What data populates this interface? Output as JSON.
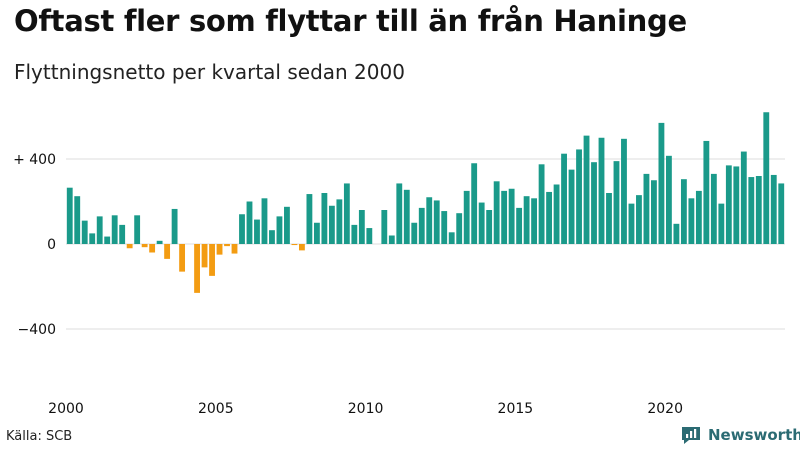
{
  "header": {
    "title": "Oftast fler som flyttar till än från Haninge",
    "subtitle": "Flyttningsnetto per kvartal sedan 2000"
  },
  "footer": {
    "source": "Källa: SCB",
    "brand": "Newsworthy"
  },
  "colors": {
    "positive": "#1a9a8a",
    "negative": "#f39c12",
    "grid": "#dddddd",
    "brand": "#2b6b73"
  },
  "chart_data": {
    "type": "bar",
    "title": "Oftast fler som flyttar till än från Haninge",
    "subtitle": "Flyttningsnetto per kvartal sedan 2000",
    "xlabel": "",
    "ylabel": "",
    "ylim": [
      -620,
      620
    ],
    "yticks": [
      {
        "value": 400,
        "label": "+ 400"
      },
      {
        "value": 0,
        "label": "0"
      },
      {
        "value": -400,
        "label": "−400"
      }
    ],
    "xticks": [
      {
        "index": 0,
        "label": "2000"
      },
      {
        "index": 20,
        "label": "2005"
      },
      {
        "index": 40,
        "label": "2010"
      },
      {
        "index": 60,
        "label": "2015"
      },
      {
        "index": 80,
        "label": "2020"
      }
    ],
    "start_year": 2000,
    "values": [
      265,
      225,
      110,
      50,
      130,
      35,
      135,
      90,
      -20,
      135,
      -15,
      -40,
      15,
      -70,
      165,
      -130,
      0,
      -230,
      -110,
      -150,
      -50,
      -10,
      -45,
      140,
      200,
      115,
      215,
      65,
      130,
      175,
      -5,
      -30,
      235,
      100,
      240,
      180,
      210,
      285,
      90,
      160,
      75,
      0,
      160,
      40,
      285,
      255,
      100,
      170,
      220,
      205,
      155,
      55,
      145,
      250,
      380,
      195,
      160,
      295,
      250,
      260,
      170,
      225,
      215,
      375,
      245,
      280,
      425,
      350,
      445,
      510,
      385,
      500,
      240,
      390,
      495,
      190,
      230,
      330,
      300,
      570,
      415,
      95,
      305,
      215,
      250,
      485,
      330,
      190,
      370,
      365,
      435,
      315,
      320,
      620,
      325,
      285
    ]
  }
}
